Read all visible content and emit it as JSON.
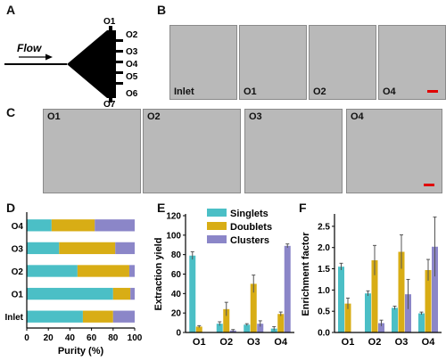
{
  "figure": {
    "panel_letters": {
      "a": "A",
      "b": "B",
      "c": "C",
      "d": "D",
      "e": "E",
      "f": "F"
    },
    "schematic": {
      "flow_label": "Flow",
      "outlets": [
        "O1",
        "O2",
        "O3",
        "O4",
        "O5",
        "O6",
        "O7"
      ]
    },
    "panel_b_labels": [
      "Inlet",
      "O1",
      "O2",
      "O4"
    ],
    "panel_c_labels": [
      "O1",
      "O2",
      "O3",
      "O4"
    ],
    "scalebar_color": "#e00000",
    "colors": {
      "singlets": "#4bbfc6",
      "doublets": "#d8ad15",
      "clusters": "#8b86c8"
    }
  },
  "chart_data": [
    {
      "id": "D",
      "type": "bar",
      "orientation": "horizontal-stacked",
      "categories": [
        "O4",
        "O3",
        "O2",
        "O1",
        "Inlet"
      ],
      "series": [
        {
          "name": "Singlets",
          "values": [
            23,
            30,
            47,
            80,
            52
          ]
        },
        {
          "name": "Doublets",
          "values": [
            40,
            52,
            48,
            16,
            28
          ]
        },
        {
          "name": "Clusters",
          "values": [
            37,
            18,
            5,
            4,
            20
          ]
        }
      ],
      "xlabel": "Purity (%)",
      "xticks": [
        "0",
        "20",
        "40",
        "60",
        "80",
        "100"
      ],
      "xlim": [
        0,
        100
      ]
    },
    {
      "id": "E",
      "type": "bar",
      "categories": [
        "O1",
        "O2",
        "O3",
        "O4"
      ],
      "series": [
        {
          "name": "Singlets",
          "values": [
            79,
            9,
            8,
            4
          ],
          "errors": [
            4,
            2,
            1,
            2
          ]
        },
        {
          "name": "Doublets",
          "values": [
            6,
            24,
            50,
            19
          ],
          "errors": [
            1,
            7,
            9,
            2
          ]
        },
        {
          "name": "Clusters",
          "values": [
            0,
            2,
            9,
            89
          ],
          "errors": [
            0,
            1,
            3,
            2
          ]
        }
      ],
      "ylabel": "Extraction yield",
      "yticks": [
        "0",
        "20",
        "40",
        "60",
        "80",
        "100",
        "120"
      ],
      "ylim": [
        0,
        120
      ],
      "legend": [
        "Singlets",
        "Doublets",
        "Clusters"
      ]
    },
    {
      "id": "F",
      "type": "bar",
      "categories": [
        "O1",
        "O2",
        "O3",
        "O4"
      ],
      "series": [
        {
          "name": "Singlets",
          "values": [
            1.55,
            0.92,
            0.58,
            0.45
          ],
          "errors": [
            0.08,
            0.06,
            0.04,
            0.03
          ]
        },
        {
          "name": "Doublets",
          "values": [
            0.68,
            1.7,
            1.9,
            1.47
          ],
          "errors": [
            0.13,
            0.35,
            0.4,
            0.25
          ]
        },
        {
          "name": "Clusters",
          "values": [
            0,
            0.22,
            0.9,
            2.02
          ],
          "errors": [
            0,
            0.07,
            0.35,
            0.7
          ]
        }
      ],
      "ylabel": "Enrichment factor",
      "yticks": [
        "0.0",
        "0.5",
        "1.0",
        "1.5",
        "2.0",
        "2.5"
      ],
      "ylim": [
        0,
        2.75
      ]
    }
  ]
}
